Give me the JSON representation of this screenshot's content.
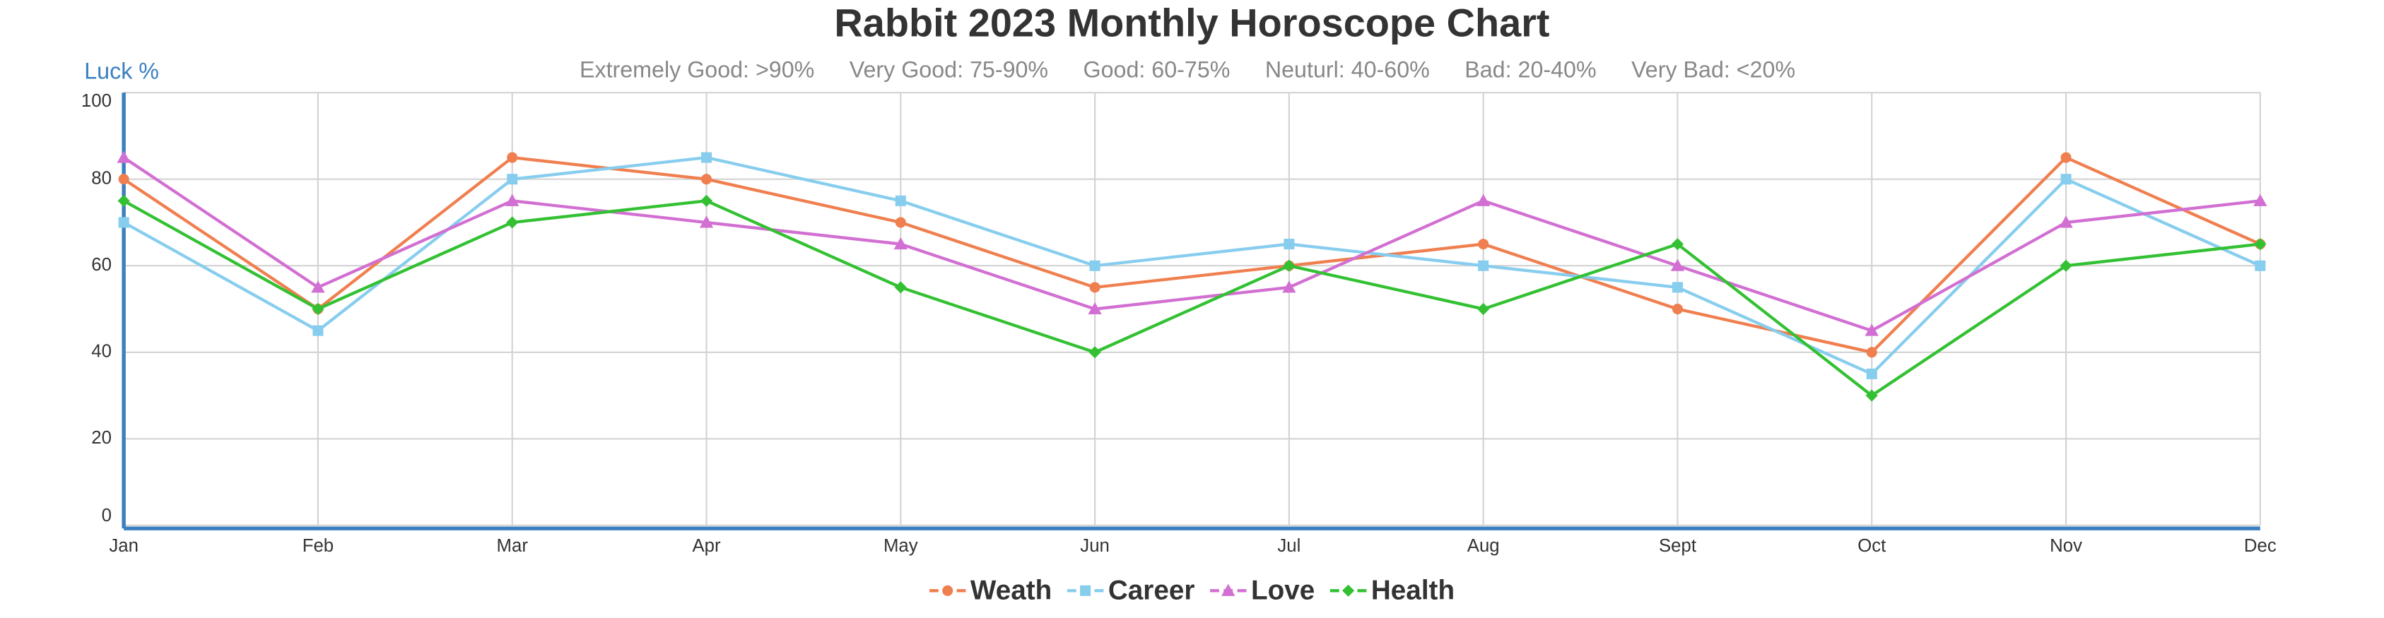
{
  "chart_data": {
    "type": "line",
    "title": "Rabbit 2023 Monthly Horoscope Chart",
    "y_label": "Luck %",
    "notes": [
      "Extremely Good: >90%",
      "Very Good: 75-90%",
      "Good: 60-75%",
      "Neuturl: 40-60%",
      "Bad: 20-40%",
      "Very Bad: <20%"
    ],
    "categories": [
      "Jan",
      "Feb",
      "Mar",
      "Apr",
      "May",
      "Jun",
      "Jul",
      "Aug",
      "Sept",
      "Oct",
      "Nov",
      "Dec"
    ],
    "series": [
      {
        "name": "Weath",
        "color": "#f07f4f",
        "marker": "circle",
        "values": [
          80,
          50,
          85,
          80,
          70,
          55,
          60,
          65,
          50,
          40,
          85,
          65
        ]
      },
      {
        "name": "Career",
        "color": "#87cdee",
        "marker": "square",
        "values": [
          70,
          45,
          80,
          85,
          75,
          60,
          65,
          60,
          55,
          35,
          80,
          60
        ]
      },
      {
        "name": "Love",
        "color": "#d26fd2",
        "marker": "triangle",
        "values": [
          85,
          55,
          75,
          70,
          65,
          50,
          55,
          75,
          60,
          45,
          70,
          75
        ]
      },
      {
        "name": "Health",
        "color": "#33c133",
        "marker": "diamond",
        "values": [
          75,
          50,
          70,
          75,
          55,
          40,
          60,
          50,
          65,
          30,
          60,
          65
        ]
      }
    ],
    "ylim": [
      0,
      100
    ],
    "yticks": [
      0,
      20,
      40,
      60,
      80,
      100
    ],
    "grid": true,
    "legend": "bottom"
  }
}
